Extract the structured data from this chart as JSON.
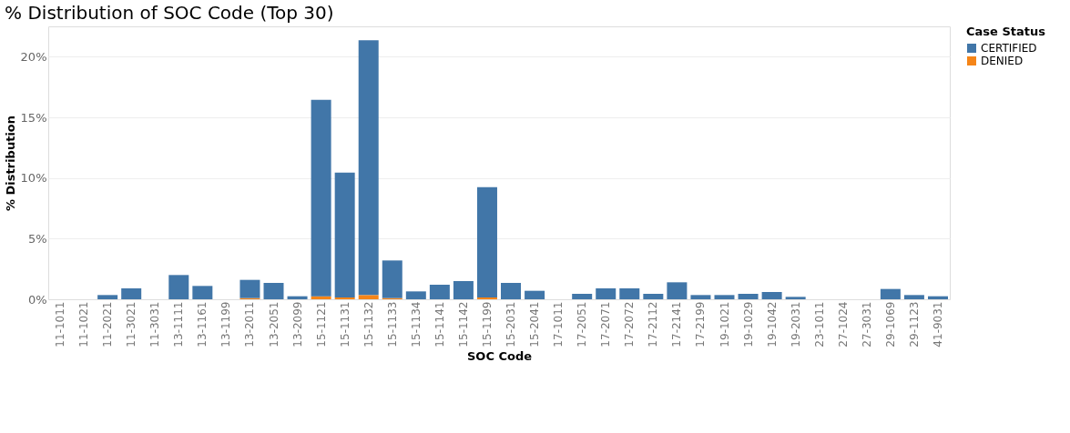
{
  "chart_data": {
    "type": "bar",
    "title": "% Distribution of SOC Code (Top 30)",
    "xlabel": "SOC Code",
    "ylabel": "% Distribution",
    "legend_title": "Case Status",
    "categories": [
      "11-1011",
      "11-1021",
      "11-2021",
      "11-3021",
      "11-3031",
      "13-1111",
      "13-1161",
      "13-1199",
      "13-2011",
      "13-2051",
      "13-2099",
      "15-1121",
      "15-1131",
      "15-1132",
      "15-1133",
      "15-1134",
      "15-1141",
      "15-1142",
      "15-1199",
      "15-2031",
      "15-2041",
      "17-1011",
      "17-2051",
      "17-2071",
      "17-2072",
      "17-2112",
      "17-2141",
      "17-2199",
      "19-1021",
      "19-1029",
      "19-1042",
      "19-2031",
      "23-1011",
      "27-1024",
      "27-3031",
      "29-1069",
      "29-1123",
      "41-9031"
    ],
    "stacked": true,
    "series": [
      {
        "name": "DENIED",
        "color": "#f58518",
        "values": [
          0,
          0,
          0,
          0,
          0,
          0,
          0,
          0,
          0.1,
          0,
          0,
          0.25,
          0.15,
          0.35,
          0.1,
          0,
          0,
          0,
          0.15,
          0,
          0,
          0,
          0,
          0,
          0,
          0,
          0,
          0,
          0,
          0,
          0,
          0,
          0,
          0,
          0,
          0,
          0,
          0
        ]
      },
      {
        "name": "CERTIFIED",
        "color": "#4176a8",
        "values": [
          0,
          0,
          0.35,
          0.9,
          0,
          2.0,
          1.1,
          0,
          1.5,
          1.35,
          0.25,
          16.2,
          10.3,
          21.0,
          3.1,
          0.65,
          1.2,
          1.5,
          9.1,
          1.35,
          0.7,
          0,
          0.45,
          0.9,
          0.9,
          0.45,
          1.4,
          0.35,
          0.35,
          0.45,
          0.6,
          0.2,
          0,
          0,
          0,
          0.85,
          0.35,
          0.25
        ]
      }
    ],
    "ylim": [
      0,
      22.5
    ],
    "yticks": [
      {
        "value": 0,
        "label": "0%"
      },
      {
        "value": 5,
        "label": "5%"
      },
      {
        "value": 10,
        "label": "10%"
      },
      {
        "value": 15,
        "label": "15%"
      },
      {
        "value": 20,
        "label": "20%"
      }
    ],
    "grid": "y",
    "legend": "top right"
  }
}
